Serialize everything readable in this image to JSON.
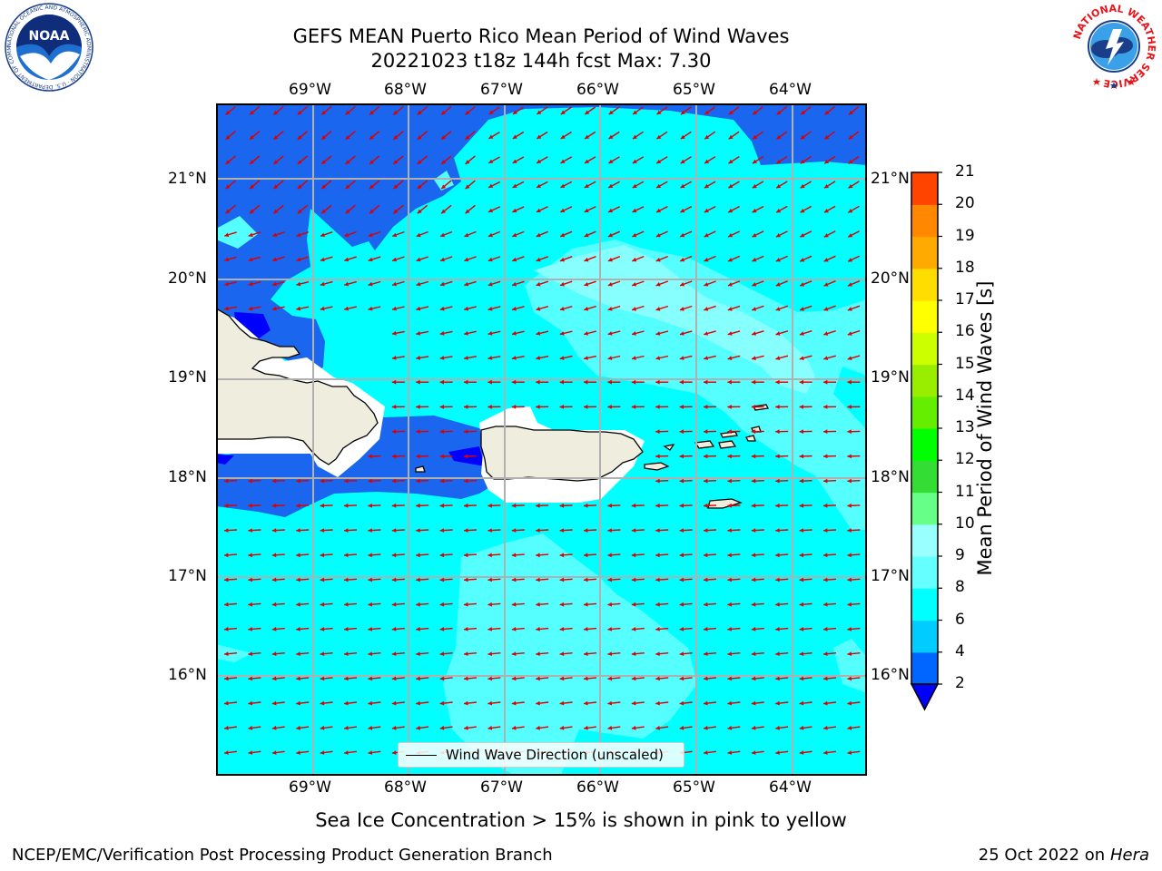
{
  "title": {
    "line1": "GEFS MEAN Puerto Rico Mean Period of Wind Waves",
    "line2": "20221023 t18z 144h fcst   Max: 7.30"
  },
  "axes": {
    "lon_labels": [
      "69°W",
      "68°W",
      "67°W",
      "66°W",
      "65°W",
      "64°W"
    ],
    "lat_labels": [
      "21°N",
      "20°N",
      "19°N",
      "18°N",
      "17°N",
      "16°N"
    ]
  },
  "legend": {
    "label": "Wind Wave Direction (unscaled)"
  },
  "colorbar": {
    "label": "Mean Period of Wind Waves [s]",
    "ticks": [
      "2",
      "4",
      "6",
      "8",
      "9",
      "10",
      "11",
      "12",
      "13",
      "14",
      "15",
      "16",
      "17",
      "18",
      "19",
      "20",
      "21"
    ],
    "colors": [
      "#0066ff",
      "#00ccff",
      "#00ffff",
      "#66ffff",
      "#99ffff",
      "#66ff88",
      "#33dd33",
      "#00ff00",
      "#66ee00",
      "#99ee00",
      "#ccff00",
      "#ffff00",
      "#ffdd00",
      "#ffaa00",
      "#ff8800",
      "#ff4400",
      "#ff0000"
    ],
    "extend_color": "#0000ff"
  },
  "note": "Sea Ice Concentration > 15% is shown in pink to yellow",
  "footer": {
    "left": "NCEP/EMC/Verification Post Processing Product Generation Branch",
    "date": "25 Oct 2022 on ",
    "machine": "Hera"
  },
  "logos": {
    "noaa": "NOAA",
    "noaa_ring": "NATIONAL OCEANIC AND ATMOSPHERIC ADMINISTRATION · U.S. DEPARTMENT OF COMMERCE",
    "nws_ring": "NATIONAL WEATHER SERVICE"
  },
  "colors": {
    "arrow": "#dd0000",
    "land": "#efedde",
    "deep_blue": "#1a66ee",
    "cyan": "#00ffff",
    "light_cyan": "#55ffff",
    "pale_cyan": "#88ffff"
  }
}
